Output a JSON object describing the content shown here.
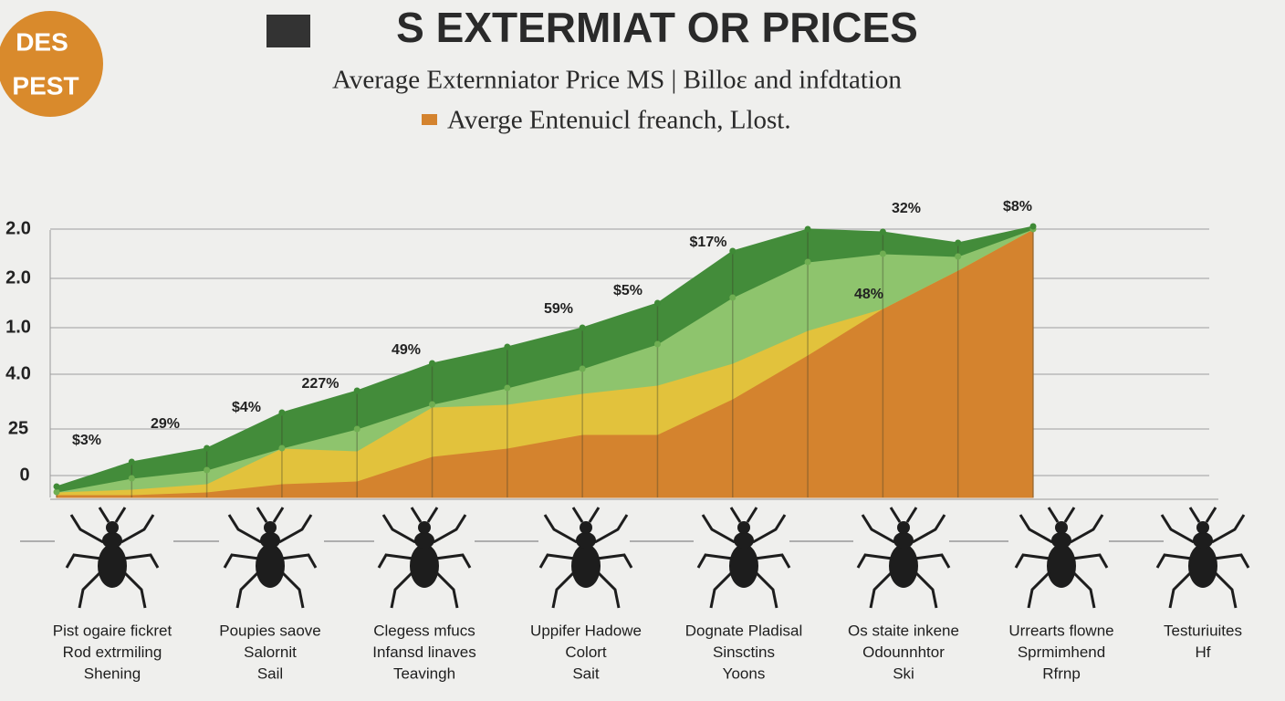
{
  "logo": [
    "DES",
    "PEST"
  ],
  "chart_data": {
    "type": "stacked_area",
    "title": "S EXTERMIAT OR PRICES",
    "subtitle": "Average  Externniator  Price  MS  | Billoɛ and infdtation",
    "categories": [
      null,
      null,
      null,
      null,
      null,
      null,
      null,
      null,
      null,
      null,
      null,
      null,
      null,
      null
    ],
    "series": [
      {
        "name": "Averge  Entenuicl freanch, Llost.",
        "color": "#d4832e",
        "values": [
          1,
          1,
          2,
          5,
          6,
          15,
          18,
          23,
          23,
          36,
          52,
          69,
          83,
          98
        ]
      },
      {
        "color": "#e2c23c",
        "values": [
          1,
          2,
          3,
          13,
          11,
          18,
          16,
          15,
          18,
          13,
          9,
          0,
          0,
          0
        ]
      },
      {
        "color": "#8ec46d",
        "values": [
          0,
          4,
          5,
          0,
          8,
          1,
          6,
          9,
          15,
          24,
          25,
          20,
          5,
          0
        ]
      },
      {
        "color": "#438c3a",
        "values": [
          2,
          6,
          8,
          13,
          14,
          15,
          15,
          15,
          15,
          17,
          12,
          8,
          5,
          1
        ]
      }
    ],
    "annotations": [
      "$3%",
      "29%",
      "$4%",
      "227%",
      "49%",
      "59%",
      "$5%",
      "$17%",
      "48%",
      "32%",
      "$8%"
    ],
    "ylim": [
      0,
      100
    ],
    "yticks": [
      {
        "value": 98,
        "label": "2.0"
      },
      {
        "value": 80,
        "label": "2.0"
      },
      {
        "value": 62,
        "label": "1.0"
      },
      {
        "value": 45,
        "label": "4.0"
      },
      25,
      {
        "value": 8,
        "label": "0"
      }
    ],
    "grid": true,
    "legend": "top"
  },
  "captions": [
    [
      "Pist ogaire fickret",
      "Rod  extrmiling",
      "Shening"
    ],
    [
      "Poupies saove",
      "Salornit",
      "Sail"
    ],
    [
      "Clegess mfucs",
      "Infansd linaves",
      "Teavingh"
    ],
    [
      "Uppifer Hadowe",
      "Colort",
      "Sait"
    ],
    [
      "Dognate Pladisal",
      "Sinsctins",
      "Yoons"
    ],
    [
      "Os staite inkene",
      "Odounnhtor",
      "Ski"
    ],
    [
      "Urrearts flowne",
      "Sprmimhend",
      "Rfrnp"
    ],
    [
      "Testuriuites",
      "Hf"
    ]
  ]
}
